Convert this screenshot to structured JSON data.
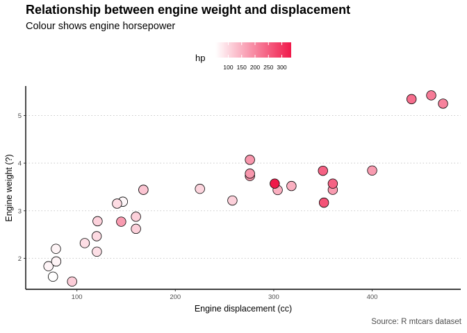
{
  "chart_data": {
    "type": "scatter",
    "title": "Relationship between engine weight and displacement",
    "subtitle": "Colour shows engine horsepower",
    "xlabel": "Engine displacement (cc)",
    "ylabel": "Engine weight (?)",
    "caption": "Source: R mtcars dataset",
    "xlim": [
      48,
      490
    ],
    "ylim": [
      1.35,
      5.62
    ],
    "xticks": [
      100,
      200,
      300,
      400
    ],
    "yticks": [
      2,
      3,
      4,
      5
    ],
    "xtick_labels": [
      "100",
      "200",
      "300",
      "400"
    ],
    "ytick_labels": [
      "2",
      "3",
      "4",
      "5"
    ],
    "grid": "horizontal dotted major",
    "legend": {
      "title": "hp",
      "placement": "top",
      "range": [
        52,
        335
      ],
      "ticks": [
        100,
        150,
        200,
        250,
        300
      ],
      "tick_labels": [
        "100",
        "150",
        "200",
        "250",
        "300"
      ],
      "low_color": "#ffffff",
      "high_color": "#f0194a"
    },
    "point_color_scale": "hp",
    "x": [
      160,
      160,
      108,
      258,
      360,
      225,
      360,
      146.7,
      140.8,
      167.6,
      167.6,
      275.8,
      275.8,
      275.8,
      472,
      460,
      440,
      78.7,
      75.7,
      71.1,
      120.1,
      318,
      304,
      350,
      400,
      79,
      120.3,
      95.1,
      351,
      145,
      301,
      121
    ],
    "y": [
      2.62,
      2.875,
      2.32,
      3.215,
      3.44,
      3.46,
      3.57,
      3.19,
      3.15,
      3.44,
      3.44,
      4.07,
      3.73,
      3.78,
      5.25,
      5.424,
      5.345,
      2.2,
      1.615,
      1.835,
      2.465,
      3.52,
      3.435,
      3.84,
      3.845,
      1.935,
      2.14,
      1.513,
      3.17,
      2.77,
      3.57,
      2.78
    ],
    "hp": [
      110,
      110,
      93,
      110,
      175,
      105,
      245,
      62,
      95,
      123,
      123,
      180,
      180,
      180,
      205,
      215,
      230,
      66,
      52,
      65,
      97,
      150,
      150,
      245,
      175,
      66,
      91,
      113,
      264,
      175,
      335,
      109
    ]
  }
}
